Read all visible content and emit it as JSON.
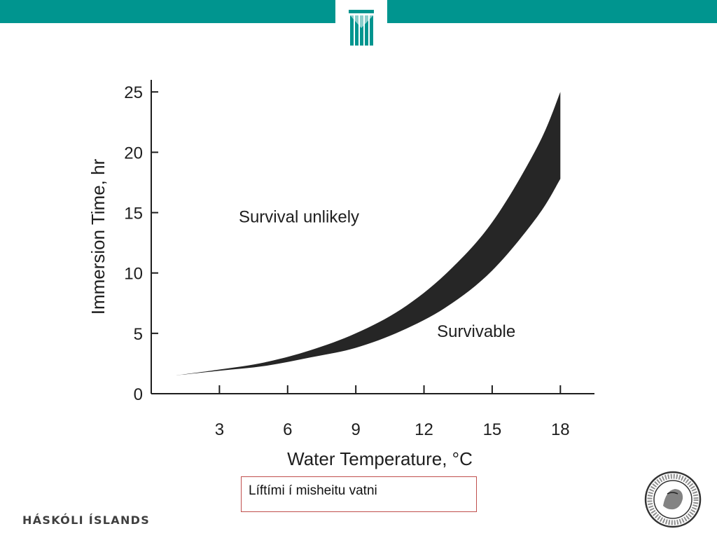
{
  "branding": {
    "institution": "HÁSKÓLI ÍSLANDS",
    "seal_text": "UNIVERSITATIS ISLANDIAE · SIGILLUM",
    "accent_color": "#00958f"
  },
  "caption": {
    "text": "Líftími í misheitu vatni"
  },
  "chart_data": {
    "type": "area",
    "title": "",
    "xlabel": "Water Temperature, °C",
    "ylabel": "Immersion Time, hr",
    "xlim": [
      0,
      19.5
    ],
    "ylim": [
      0,
      26
    ],
    "x_ticks": [
      3,
      6,
      9,
      12,
      15,
      18
    ],
    "y_ticks": [
      0,
      5,
      10,
      15,
      20,
      25
    ],
    "grid": false,
    "band": {
      "x": [
        1,
        3,
        5,
        7,
        9,
        11,
        13,
        15,
        17,
        18
      ],
      "lower": [
        1.5,
        1.9,
        2.3,
        3.0,
        3.8,
        5.2,
        7.2,
        10.2,
        14.7,
        17.8
      ],
      "upper": [
        1.5,
        2.0,
        2.6,
        3.6,
        5.0,
        7.0,
        10.0,
        14.2,
        20.5,
        25.0
      ],
      "color": "#262626"
    },
    "annotations": [
      {
        "text": "Survival unlikely",
        "x": 6.5,
        "y": 14.2
      },
      {
        "text": "Survivable",
        "x": 14.3,
        "y": 4.7
      }
    ]
  }
}
